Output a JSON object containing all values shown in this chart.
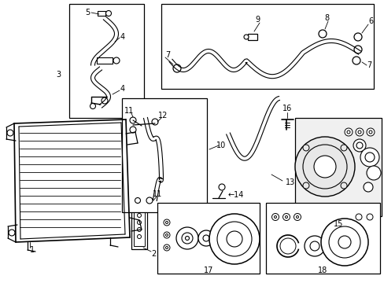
{
  "bg_color": "#ffffff",
  "line_color": "#000000",
  "fig_width": 4.89,
  "fig_height": 3.6
}
